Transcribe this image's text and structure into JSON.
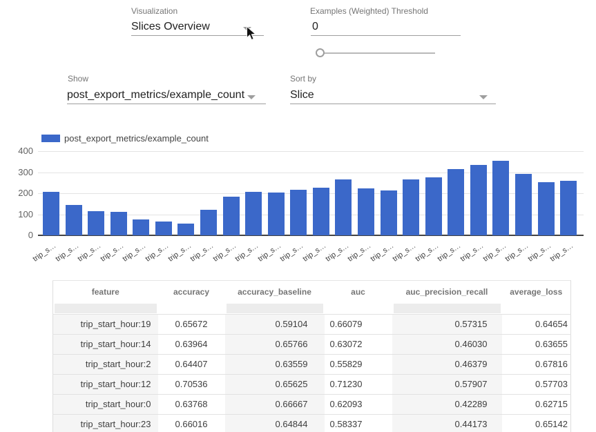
{
  "controls": {
    "visualization": {
      "label": "Visualization",
      "value": "Slices Overview"
    },
    "threshold": {
      "label": "Examples (Weighted) Threshold",
      "value": "0",
      "slider_percent": 0
    },
    "show": {
      "label": "Show",
      "value": "post_export_metrics/example_count"
    },
    "sort": {
      "label": "Sort by",
      "value": "Slice"
    }
  },
  "colors": {
    "bar": "#3b68c9",
    "underline": "#9e9e9e",
    "grid": "#e3e3e3",
    "baseline": "#424242"
  },
  "chart_data": {
    "type": "bar",
    "legend": [
      "post_export_metrics/example_count"
    ],
    "legend_position": "top-left",
    "grid": true,
    "ylim": [
      0,
      400
    ],
    "yticks": [
      0,
      100,
      200,
      300,
      400
    ],
    "x_tick_label_truncated": "trip_s…",
    "categories": [
      "trip_s…",
      "trip_s…",
      "trip_s…",
      "trip_s…",
      "trip_s…",
      "trip_s…",
      "trip_s…",
      "trip_s…",
      "trip_s…",
      "trip_s…",
      "trip_s…",
      "trip_s…",
      "trip_s…",
      "trip_s…",
      "trip_s…",
      "trip_s…",
      "trip_s…",
      "trip_s…",
      "trip_s…",
      "trip_s…",
      "trip_s…",
      "trip_s…",
      "trip_s…",
      "trip_s…"
    ],
    "values": [
      207,
      144,
      116,
      110,
      75,
      64,
      57,
      120,
      182,
      208,
      204,
      216,
      225,
      267,
      222,
      213,
      264,
      277,
      315,
      333,
      354,
      292,
      254,
      258
    ]
  },
  "table": {
    "columns": [
      "feature",
      "accuracy",
      "accuracy_baseline",
      "auc",
      "auc_precision_recall",
      "average_loss"
    ],
    "rows": [
      [
        "trip_start_hour:19",
        "0.65672",
        "0.59104",
        "0.66079",
        "0.57315",
        "0.64654"
      ],
      [
        "trip_start_hour:14",
        "0.63964",
        "0.65766",
        "0.63072",
        "0.46030",
        "0.63655"
      ],
      [
        "trip_start_hour:2",
        "0.64407",
        "0.63559",
        "0.55829",
        "0.46379",
        "0.67816"
      ],
      [
        "trip_start_hour:12",
        "0.70536",
        "0.65625",
        "0.71230",
        "0.57907",
        "0.57703"
      ],
      [
        "trip_start_hour:0",
        "0.63768",
        "0.66667",
        "0.62093",
        "0.42289",
        "0.62715"
      ],
      [
        "trip_start_hour:23",
        "0.66016",
        "0.64844",
        "0.58337",
        "0.44173",
        "0.65142"
      ]
    ]
  }
}
